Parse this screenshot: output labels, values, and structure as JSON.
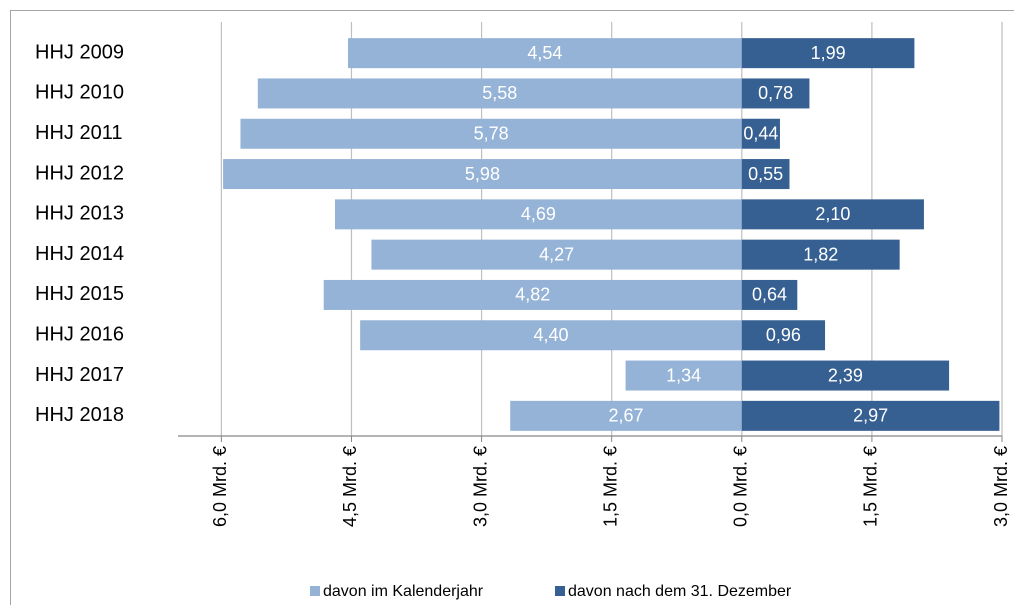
{
  "chart_data": {
    "type": "barh",
    "categories": [
      "HHJ 2009",
      "HHJ 2010",
      "HHJ 2011",
      "HHJ 2012",
      "HHJ 2013",
      "HHJ 2014",
      "HHJ 2015",
      "HHJ 2016",
      "HHJ 2017",
      "HHJ 2018"
    ],
    "series": [
      {
        "name": "davon im Kalenderjahr",
        "color": "#95b3d7",
        "values": [
          -4.54,
          -5.58,
          -5.78,
          -5.98,
          -4.69,
          -4.27,
          -4.82,
          -4.4,
          -1.34,
          -2.67
        ],
        "value_labels": [
          "4,54",
          "5,58",
          "5,78",
          "5,98",
          "4,69",
          "4,27",
          "4,82",
          "4,40",
          "1,34",
          "2,67"
        ]
      },
      {
        "name": "davon nach dem 31. Dezember",
        "color": "#376092",
        "values": [
          1.99,
          0.78,
          0.44,
          0.55,
          2.1,
          1.82,
          0.64,
          0.96,
          2.39,
          2.97
        ],
        "value_labels": [
          "1,99",
          "0,78",
          "0,44",
          "0,55",
          "2,10",
          "1,82",
          "0,64",
          "0,96",
          "2,39",
          "2,97"
        ]
      }
    ],
    "xlim": [
      -6.5,
      3.0
    ],
    "xticks": [
      {
        "value": -6.0,
        "label": "6,0 Mrd. €"
      },
      {
        "value": -4.5,
        "label": "4,5 Mrd. €"
      },
      {
        "value": -3.0,
        "label": "3,0 Mrd. €"
      },
      {
        "value": -1.5,
        "label": "1,5 Mrd. €"
      },
      {
        "value": 0.0,
        "label": "0,0 Mrd. €"
      },
      {
        "value": 1.5,
        "label": "1,5 Mrd. €"
      },
      {
        "value": 3.0,
        "label": "3,0 Mrd. €"
      }
    ],
    "grid": true,
    "legend": "bottom"
  }
}
